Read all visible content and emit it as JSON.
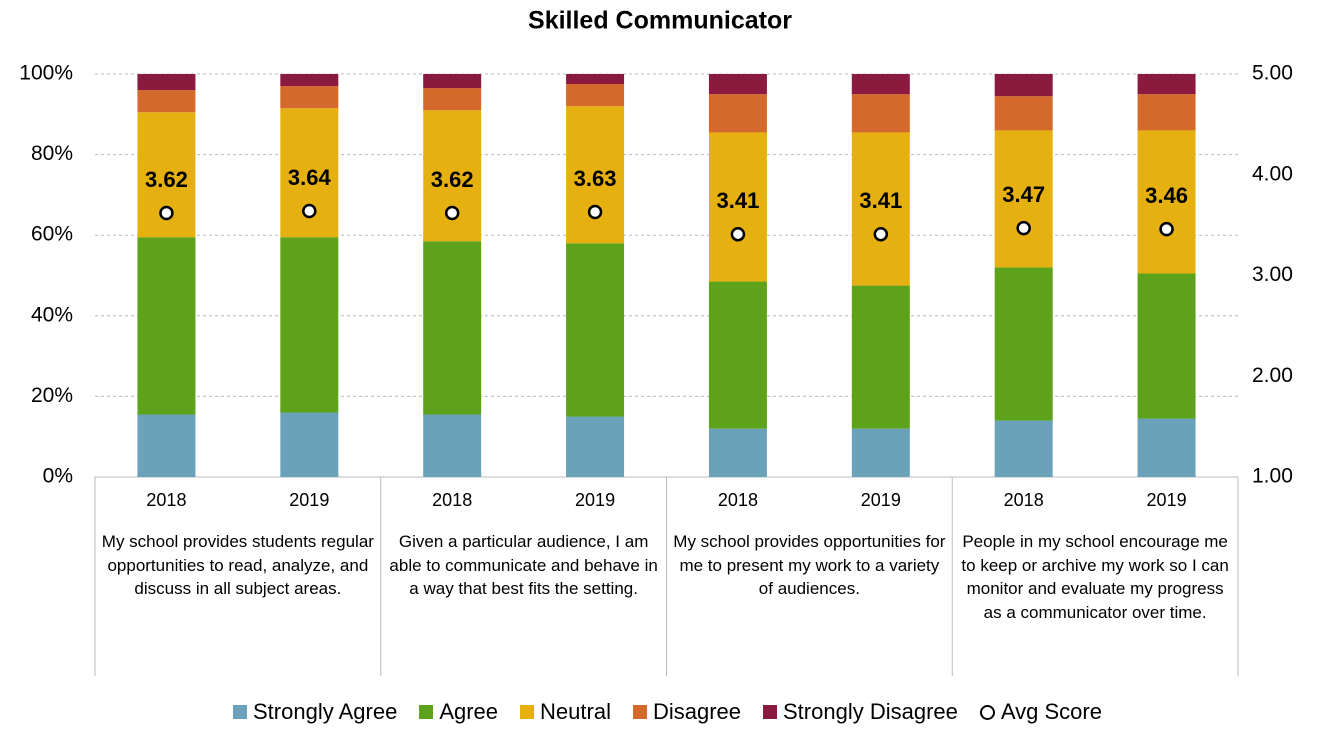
{
  "chart_data": {
    "type": "stacked-bar",
    "title": "Skilled Communicator",
    "categories": [
      "2018",
      "2019",
      "2018",
      "2019",
      "2018",
      "2019",
      "2018",
      "2019"
    ],
    "groups": [
      "My school provides students regular opportunities to read, analyze, and discuss in all subject areas.",
      "Given a particular audience, I am able to communicate and behave in a way that best fits the setting.",
      "My school provides opportunities for me to present my work to a variety of audiences.",
      "People in my school encourage me to keep or archive my work so I can monitor and evaluate my progress as a communicator over time."
    ],
    "series": [
      {
        "name": "Strongly Agree",
        "color": "#6aa3b9",
        "values": [
          15.5,
          16,
          15.5,
          15,
          12,
          12,
          14,
          14.5
        ]
      },
      {
        "name": "Agree",
        "color": "#5ea11a",
        "values": [
          44,
          43.5,
          43,
          43,
          36.5,
          35.5,
          38,
          36
        ]
      },
      {
        "name": "Neutral",
        "color": "#e6b110",
        "values": [
          31,
          32,
          32.5,
          34,
          37,
          38,
          34,
          35.5
        ]
      },
      {
        "name": "Disagree",
        "color": "#d4692b",
        "values": [
          5.5,
          5.5,
          5.5,
          5.5,
          9.5,
          9.5,
          8.5,
          9
        ]
      },
      {
        "name": "Strongly Disagree",
        "color": "#8b1a3f",
        "values": [
          4,
          3,
          3.5,
          2.5,
          5,
          5,
          5.5,
          5
        ]
      },
      {
        "name": "Avg Score",
        "type": "scatter",
        "axis": "y2",
        "color": "#ffffff",
        "values": [
          3.62,
          3.64,
          3.62,
          3.63,
          3.41,
          3.41,
          3.47,
          3.46
        ]
      }
    ],
    "ylim": [
      0,
      100
    ],
    "yticks": [
      {
        "value": 0,
        "label": "0%"
      },
      {
        "value": 20,
        "label": "20%"
      },
      {
        "value": 40,
        "label": "40%"
      },
      {
        "value": 60,
        "label": "60%"
      },
      {
        "value": 80,
        "label": "80%"
      },
      {
        "value": 100,
        "label": "100%"
      }
    ],
    "y2lim": [
      1,
      5
    ],
    "y2ticks": [
      {
        "value": 1,
        "label": "1.00"
      },
      {
        "value": 2,
        "label": "2.00"
      },
      {
        "value": 3,
        "label": "3.00"
      },
      {
        "value": 4,
        "label": "4.00"
      },
      {
        "value": 5,
        "label": "5.00"
      }
    ],
    "grid": true,
    "legend": "bottom"
  }
}
